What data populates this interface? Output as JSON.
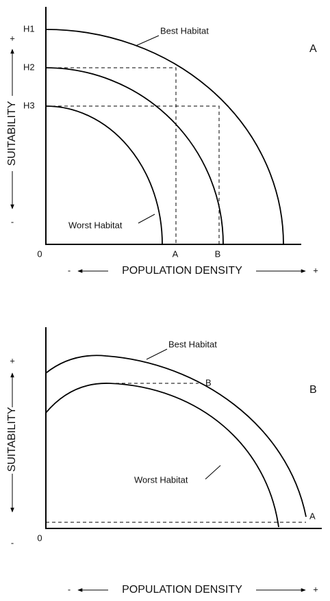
{
  "panels": [
    {
      "label": "A",
      "y_axis": {
        "label": "SUITABILITY",
        "plus": "+",
        "minus": "-"
      },
      "x_axis": {
        "label": "POPULATION DENSITY",
        "minus": "-",
        "plus": "+",
        "origin": "0",
        "marks": [
          "A",
          "B"
        ]
      },
      "levels": [
        "H1",
        "H2",
        "H3"
      ],
      "curves": [
        "Best Habitat",
        "Worst Habitat"
      ]
    },
    {
      "label": "B",
      "y_axis": {
        "label": "SUITABILITY",
        "plus": "+",
        "minus": "-"
      },
      "x_axis": {
        "label": "POPULATION DENSITY",
        "minus": "-",
        "plus": "+",
        "origin": "0"
      },
      "curves": [
        "Best Habitat",
        "Worst Habitat"
      ],
      "points": [
        "B",
        "A"
      ]
    }
  ]
}
